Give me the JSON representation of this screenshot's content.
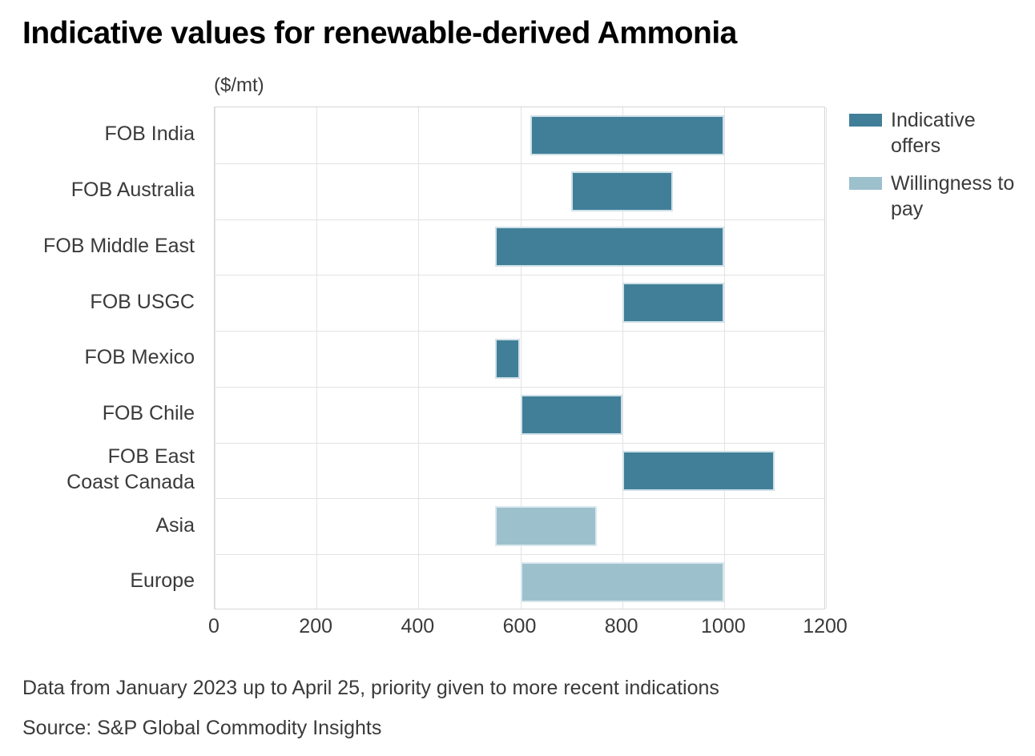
{
  "title": "Indicative values for renewable-derived Ammonia",
  "unit_label": "($/mt)",
  "legend": {
    "items": [
      {
        "label": "Indicative offers",
        "color": "#417f99"
      },
      {
        "label": "Willingness to pay",
        "color": "#9dc0cd"
      }
    ]
  },
  "footnote": "Data from January 2023 up to April 25, priority given to more recent indications",
  "source": "Source: S&P Global Commodity Insights",
  "chart_data": {
    "type": "bar",
    "subtype": "horizontal-range",
    "title": "Indicative values for renewable-derived Ammonia",
    "xlabel": "($/mt)",
    "xlim": [
      0,
      1200
    ],
    "xticks": [
      0,
      200,
      400,
      600,
      800,
      1000,
      1200
    ],
    "grid": true,
    "legend_position": "right",
    "categories": [
      "FOB India",
      "FOB Australia",
      "FOB Middle East",
      "FOB USGC",
      "FOB Mexico",
      "FOB Chile",
      "FOB East\nCoast Canada",
      "Asia",
      "Europe"
    ],
    "series": [
      {
        "name": "Indicative offers",
        "color": "#417f99",
        "data": [
          {
            "category": "FOB India",
            "low": 620,
            "high": 1000
          },
          {
            "category": "FOB Australia",
            "low": 700,
            "high": 900
          },
          {
            "category": "FOB Middle East",
            "low": 550,
            "high": 1000
          },
          {
            "category": "FOB USGC",
            "low": 800,
            "high": 1000
          },
          {
            "category": "FOB Mexico",
            "low": 550,
            "high": 600
          },
          {
            "category": "FOB Chile",
            "low": 600,
            "high": 800
          },
          {
            "category": "FOB East\nCoast Canada",
            "low": 800,
            "high": 1100
          }
        ]
      },
      {
        "name": "Willingness to pay",
        "color": "#9dc0cd",
        "data": [
          {
            "category": "Asia",
            "low": 550,
            "high": 750
          },
          {
            "category": "Europe",
            "low": 600,
            "high": 1000
          }
        ]
      }
    ]
  }
}
